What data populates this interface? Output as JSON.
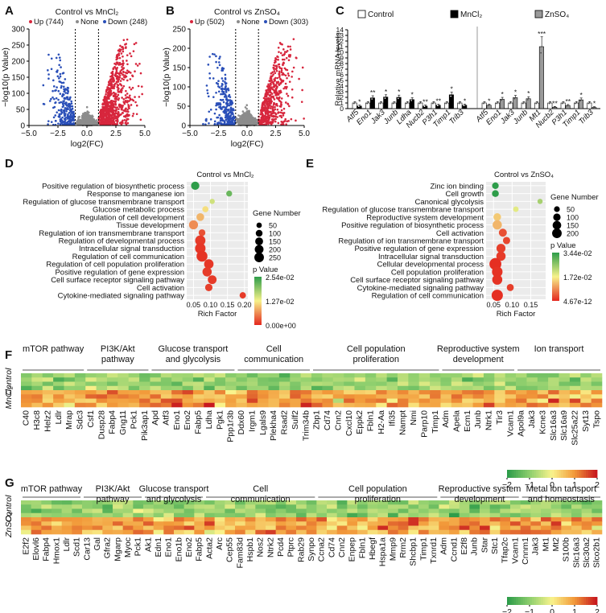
{
  "chart_data": [
    {
      "panel": "A",
      "type": "scatter",
      "title": "Control vs MnCl₂",
      "legend": {
        "up": "Up (744)",
        "none": "None",
        "down": "Down (248)"
      },
      "xlabel": "log2(FC)",
      "ylabel": "−log10(p Value)",
      "xlim": [
        -5,
        5
      ],
      "ylim": [
        0,
        300
      ],
      "xticks": [
        "−5.0",
        "−2.5",
        "0.0",
        "2.5",
        "5.0"
      ],
      "yticks": [
        "0",
        "50",
        "100",
        "150",
        "200",
        "250",
        "300"
      ],
      "thresholds": [
        -1,
        1
      ],
      "counts": {
        "up": 744,
        "down": 248,
        "none": 900
      },
      "colors": {
        "up": "#d7263d",
        "down": "#2a4fb8",
        "none": "#8c8c8c"
      }
    },
    {
      "panel": "B",
      "type": "scatter",
      "title": "Control vs ZnSO₄",
      "legend": {
        "up": "Up (502)",
        "none": "None",
        "down": "Down (303)"
      },
      "xlabel": "log2(FC)",
      "ylabel": "−log10(p Value)",
      "xlim": [
        -5,
        5
      ],
      "ylim": [
        0,
        250
      ],
      "xticks": [
        "−5.0",
        "−2.5",
        "0.0",
        "2.5",
        "5.0"
      ],
      "yticks": [
        "0",
        "50",
        "100",
        "150",
        "200",
        "250"
      ],
      "thresholds": [
        -1,
        1
      ],
      "counts": {
        "up": 502,
        "down": 303,
        "none": 900
      },
      "colors": {
        "up": "#d7263d",
        "down": "#2a4fb8",
        "none": "#8c8c8c"
      }
    },
    {
      "panel": "C",
      "type": "bar",
      "ylabel": "Relative mRNA levels",
      "ylim": [
        0,
        14
      ],
      "yticks": [
        "0",
        "1",
        "2",
        "3",
        "4",
        "5",
        "6",
        "7",
        "8",
        "9",
        "10",
        "11",
        "12",
        "13",
        "14"
      ],
      "legend": [
        "Control",
        "MnCl₂",
        "ZnSO₄"
      ],
      "colors": {
        "Control": "#ffffff",
        "MnCl₂": "#000000",
        "ZnSO₄": "#9a9a9a"
      },
      "groups": [
        {
          "treatment": "MnCl₂",
          "categories": [
            "Atf5",
            "Eno1",
            "Jak3",
            "Junb",
            "Ldha",
            "Nucb2",
            "P3h1",
            "Timp1",
            "Trib3"
          ],
          "control": [
            1,
            1,
            1,
            1,
            1,
            1,
            1,
            1,
            1
          ],
          "treated": [
            0.45,
            1.9,
            2.05,
            2.0,
            1.6,
            0.45,
            0.6,
            2.45,
            0.6
          ],
          "sig": [
            "*",
            "**",
            "*",
            "*",
            "*",
            "**",
            "**",
            "*",
            "*"
          ]
        },
        {
          "treatment": "ZnSO₄",
          "categories": [
            "Atf5",
            "Eno1",
            "Jak3",
            "Junb",
            "Mt1",
            "Nucb2",
            "P3h1",
            "Timp1",
            "Trib3"
          ],
          "control": [
            1,
            1,
            1,
            1,
            1,
            1,
            1,
            1,
            1
          ],
          "treated": [
            0.6,
            1.65,
            1.95,
            1.75,
            11.0,
            0.25,
            0.55,
            1.55,
            0.2
          ],
          "sig": [
            "*",
            "*",
            "*",
            "*",
            "***",
            "**",
            "**",
            "*",
            "*"
          ]
        }
      ]
    },
    {
      "panel": "D",
      "type": "scatter",
      "subtype": "dotplot",
      "title": "Control vs MnCl₂",
      "xlabel": "Rich Factor",
      "xlim": [
        0.03,
        0.21
      ],
      "xticks": [
        0.05,
        0.1,
        0.15,
        0.2
      ],
      "xtick_labels": [
        "0.05",
        "0.10",
        "0.15",
        "0.20"
      ],
      "size_legend_title": "Gene Number",
      "size_breaks": [
        50,
        100,
        150,
        200,
        250
      ],
      "color_legend_title": "p Value",
      "color_breaks": [
        "2.54e-02",
        "1.27e-02",
        "0.00e+00"
      ],
      "terms": [
        "Positive regulation of biosynthetic process",
        "Response to manganese ion",
        "Regulation of glucose transmembrane transport",
        "Glucose metabolic process",
        "Regulation of cell development",
        "Tissue development",
        "Regulation of ion transmembrane transport",
        "Regulation of developmental process",
        "Intracellular signal transduction",
        "Regulation of cell communication",
        "Regulation of cell population proliferation",
        "Positive regulation of gene expression",
        "Cell surface receptor signaling pathway",
        "Cell activation",
        "Cytokine-mediated signaling pathway"
      ],
      "rich_factor": [
        0.055,
        0.155,
        0.105,
        0.085,
        0.07,
        0.05,
        0.075,
        0.07,
        0.07,
        0.075,
        0.095,
        0.09,
        0.105,
        0.095,
        0.195
      ],
      "gene_number": [
        110,
        40,
        25,
        45,
        90,
        140,
        60,
        200,
        210,
        230,
        160,
        150,
        130,
        80,
        50
      ],
      "p_norm": [
        1.0,
        0.85,
        0.6,
        0.45,
        0.35,
        0.25,
        0.1,
        0.05,
        0.04,
        0.03,
        0.04,
        0.05,
        0.05,
        0.06,
        0.05
      ]
    },
    {
      "panel": "E",
      "type": "scatter",
      "subtype": "dotplot",
      "title": "Control vs ZnSO₄",
      "xlabel": "Rich Factor",
      "xlim": [
        0.03,
        0.19
      ],
      "xticks": [
        0.05,
        0.1,
        0.15
      ],
      "xtick_labels": [
        "0.05",
        "0.10",
        "0.15"
      ],
      "size_legend_title": "Gene Number",
      "size_breaks": [
        50,
        100,
        150,
        200
      ],
      "color_legend_title": "p Value",
      "color_breaks": [
        "3.44e-02",
        "1.72e-02",
        "4.67e-12"
      ],
      "terms": [
        "Zinc ion binding",
        "Cell growth",
        "Canonical glycolysis",
        "Regulation of glucose transmembrane transport",
        "Reproductive system development",
        "Positive regulation of biosynthetic process",
        "Cell activation",
        "Regulation of ion transmembrane transport",
        "Positive regulation of gene expression",
        "Intracellular signal transduction",
        "Cellular developmental process",
        "Cell population proliferation",
        "Cell surface receptor signaling pathway",
        "Cytokine-mediated signaling pathway",
        "Regulation of cell communication"
      ],
      "rich_factor": [
        0.055,
        0.055,
        0.175,
        0.11,
        0.06,
        0.06,
        0.075,
        0.085,
        0.07,
        0.07,
        0.055,
        0.06,
        0.06,
        0.095,
        0.06
      ],
      "gene_number": [
        45,
        50,
        20,
        25,
        70,
        120,
        80,
        60,
        110,
        120,
        230,
        170,
        150,
        55,
        200
      ],
      "p_norm": [
        1.0,
        1.0,
        0.7,
        0.55,
        0.4,
        0.35,
        0.1,
        0.08,
        0.06,
        0.05,
        0.02,
        0.03,
        0.03,
        0.06,
        0.02
      ]
    },
    {
      "panel": "F",
      "type": "heatmap",
      "row_labels": [
        "MnCl₂",
        "Control"
      ],
      "categories": [
        {
          "label": "mTOR pathway",
          "genes": [
            "C40",
            "H3c8",
            "Helz2",
            "Ldlr",
            "Mrap",
            "Sdc3"
          ]
        },
        {
          "label": "PI3K/Akt pathway",
          "genes": [
            "Csf1",
            "Dusp28",
            "Fabp4",
            "Gng11",
            "Pck1",
            "Pik3ap1"
          ]
        },
        {
          "label": "Glucose transport and glycolysis",
          "genes": [
            "Apd",
            "Atf3",
            "Eno1",
            "Eno2",
            "Fabp5",
            "Ldha",
            "Pgk1",
            "Ppp1r3b"
          ]
        },
        {
          "label": "Cell communication",
          "genes": [
            "Ddx60",
            "Irgm1",
            "Lgals9",
            "Plekha4",
            "Rsad2",
            "Sulf2",
            "Trim34b"
          ]
        },
        {
          "label": "Cell population proliferation",
          "genes": [
            "Zbp1",
            "Cd74",
            "Cnn2",
            "Cxcl10",
            "Eppk2",
            "Fbln1",
            "H2-Aa",
            "Ifi35",
            "Nampt",
            "Nmi",
            "Parp10",
            "Timp1"
          ]
        },
        {
          "label": "Reproductive system development",
          "genes": [
            "Adm",
            "Apela",
            "Ecm1",
            "Junb",
            "Ntrk1",
            "Tir3",
            "Vcam1"
          ]
        },
        {
          "label": "Ion transport",
          "genes": [
            "Apol9a",
            "Jak3",
            "Kcne3",
            "Slc16a3",
            "Slc16a9",
            "Slc25a22",
            "Syt13",
            "Tspo"
          ]
        }
      ],
      "color_scale": {
        "min": -2,
        "max": 2,
        "ticks": [
          "−2",
          "−1",
          "0",
          "1",
          "2"
        ]
      }
    },
    {
      "panel": "G",
      "type": "heatmap",
      "row_labels": [
        "ZnSO₄",
        "Control"
      ],
      "categories": [
        {
          "label": "mTOR pathway",
          "genes": [
            "E2f2",
            "Elovl6",
            "Fabp4",
            "Hmox1",
            "Ldlr",
            "Scd1"
          ]
        },
        {
          "label": "PI3K/Akt pathway",
          "genes": [
            "Car13",
            "Gal",
            "Gfra2",
            "Mgarp",
            "Myoc",
            "Pck1"
          ]
        },
        {
          "label": "Glucose transport and glycolysis",
          "genes": [
            "Ak1",
            "Edn1",
            "Eno1",
            "Eno1b",
            "Eno2",
            "Fabp5"
          ]
        },
        {
          "label": "Cell communication",
          "genes": [
            "Acta2",
            "Arc",
            "Cep55",
            "Fam83d",
            "Hspb1",
            "Nos2",
            "Ntrk2",
            "Pcd4",
            "Ptprc",
            "Rab29",
            "Synpo"
          ]
        },
        {
          "label": "Cell population proliferation",
          "genes": [
            "Ccna2",
            "Cd74",
            "Cnn2",
            "Enpep",
            "Fbln1",
            "Hbegf",
            "Hspa1a",
            "Mmp9",
            "Rrm2",
            "Shcbp1",
            "Timp1",
            "Txnrd1"
          ]
        },
        {
          "label": "Reproductive system development",
          "genes": [
            "Adm",
            "Ccnd1",
            "E2f8",
            "Junb",
            "Star",
            "Stc1",
            "Tfap2c",
            "Vcam1"
          ]
        },
        {
          "label": "Metal ion tansport and homeostasis",
          "genes": [
            "Cnnm1",
            "Jak3",
            "Mt1",
            "Mt2",
            "S100b",
            "Slc16a3",
            "Slc30a2",
            "Slco2b1"
          ]
        }
      ],
      "color_scale": {
        "min": -2,
        "max": 2,
        "ticks": [
          "−2",
          "−1",
          "0",
          "1",
          "2"
        ]
      }
    }
  ],
  "panel_letters": [
    "A",
    "B",
    "C",
    "D",
    "E",
    "F",
    "G"
  ]
}
